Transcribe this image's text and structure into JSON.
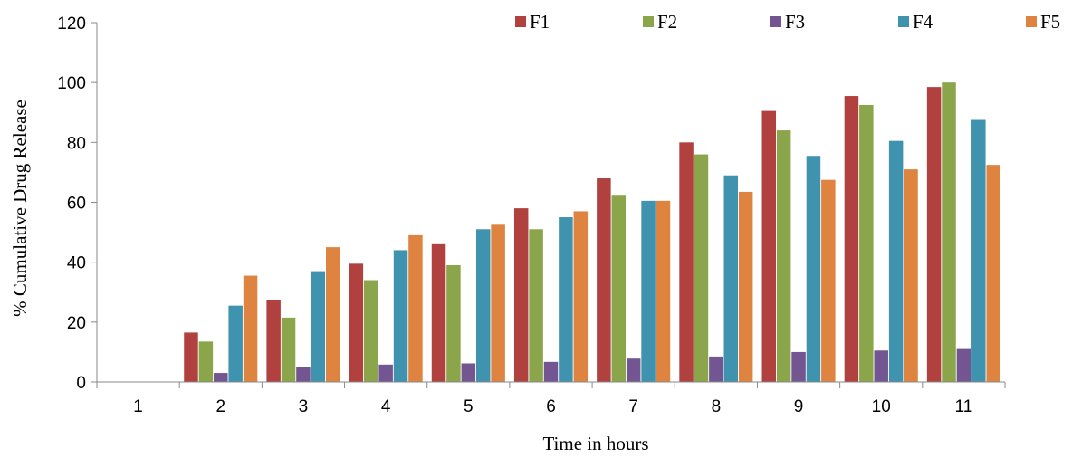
{
  "chart_data": {
    "type": "bar",
    "xlabel": "Time in hours",
    "ylabel": "% Cumulative Drug Release",
    "ylim": [
      0,
      120
    ],
    "yticks": [
      0,
      20,
      40,
      60,
      80,
      100,
      120
    ],
    "grid": false,
    "legend_position": "top",
    "categories": [
      "1",
      "2",
      "3",
      "4",
      "5",
      "6",
      "7",
      "8",
      "9",
      "10",
      "11"
    ],
    "series": [
      {
        "name": "F1",
        "color": "#B0413E",
        "values": [
          0,
          16.5,
          27.5,
          39.5,
          46.0,
          58.0,
          68.0,
          80.0,
          90.5,
          95.5,
          98.5
        ]
      },
      {
        "name": "F2",
        "color": "#8BA54B",
        "values": [
          0,
          13.5,
          21.5,
          34.0,
          39.0,
          51.0,
          62.5,
          76.0,
          84.0,
          92.5,
          100.0
        ]
      },
      {
        "name": "F3",
        "color": "#735592",
        "values": [
          0,
          3.0,
          5.0,
          5.8,
          6.2,
          6.7,
          7.8,
          8.5,
          10.0,
          10.5,
          11.0
        ]
      },
      {
        "name": "F4",
        "color": "#3F93AE",
        "values": [
          0,
          25.5,
          37.0,
          44.0,
          51.0,
          55.0,
          60.5,
          69.0,
          75.5,
          80.5,
          87.5
        ]
      },
      {
        "name": "F5",
        "color": "#DE8440",
        "values": [
          0,
          35.5,
          45.0,
          49.0,
          52.5,
          57.0,
          60.5,
          63.5,
          67.5,
          71.0,
          72.5
        ]
      }
    ]
  }
}
